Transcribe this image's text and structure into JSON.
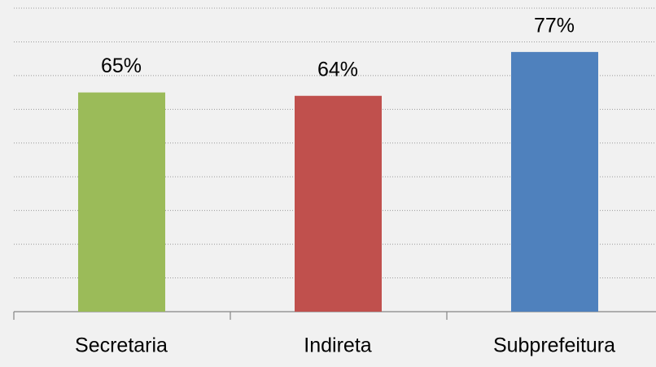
{
  "chart_data": {
    "type": "bar",
    "categories": [
      "Secretaria",
      "Indireta",
      "Subprefeitura"
    ],
    "values": [
      65,
      64,
      77
    ],
    "value_labels": [
      "65%",
      "64%",
      "77%"
    ],
    "colors": [
      "#9bbb59",
      "#c0504d",
      "#4f81bd"
    ],
    "ylim": [
      0,
      90
    ],
    "yticks": [
      0,
      10,
      20,
      30,
      40,
      50,
      60,
      70,
      80,
      90
    ],
    "grid": true
  }
}
